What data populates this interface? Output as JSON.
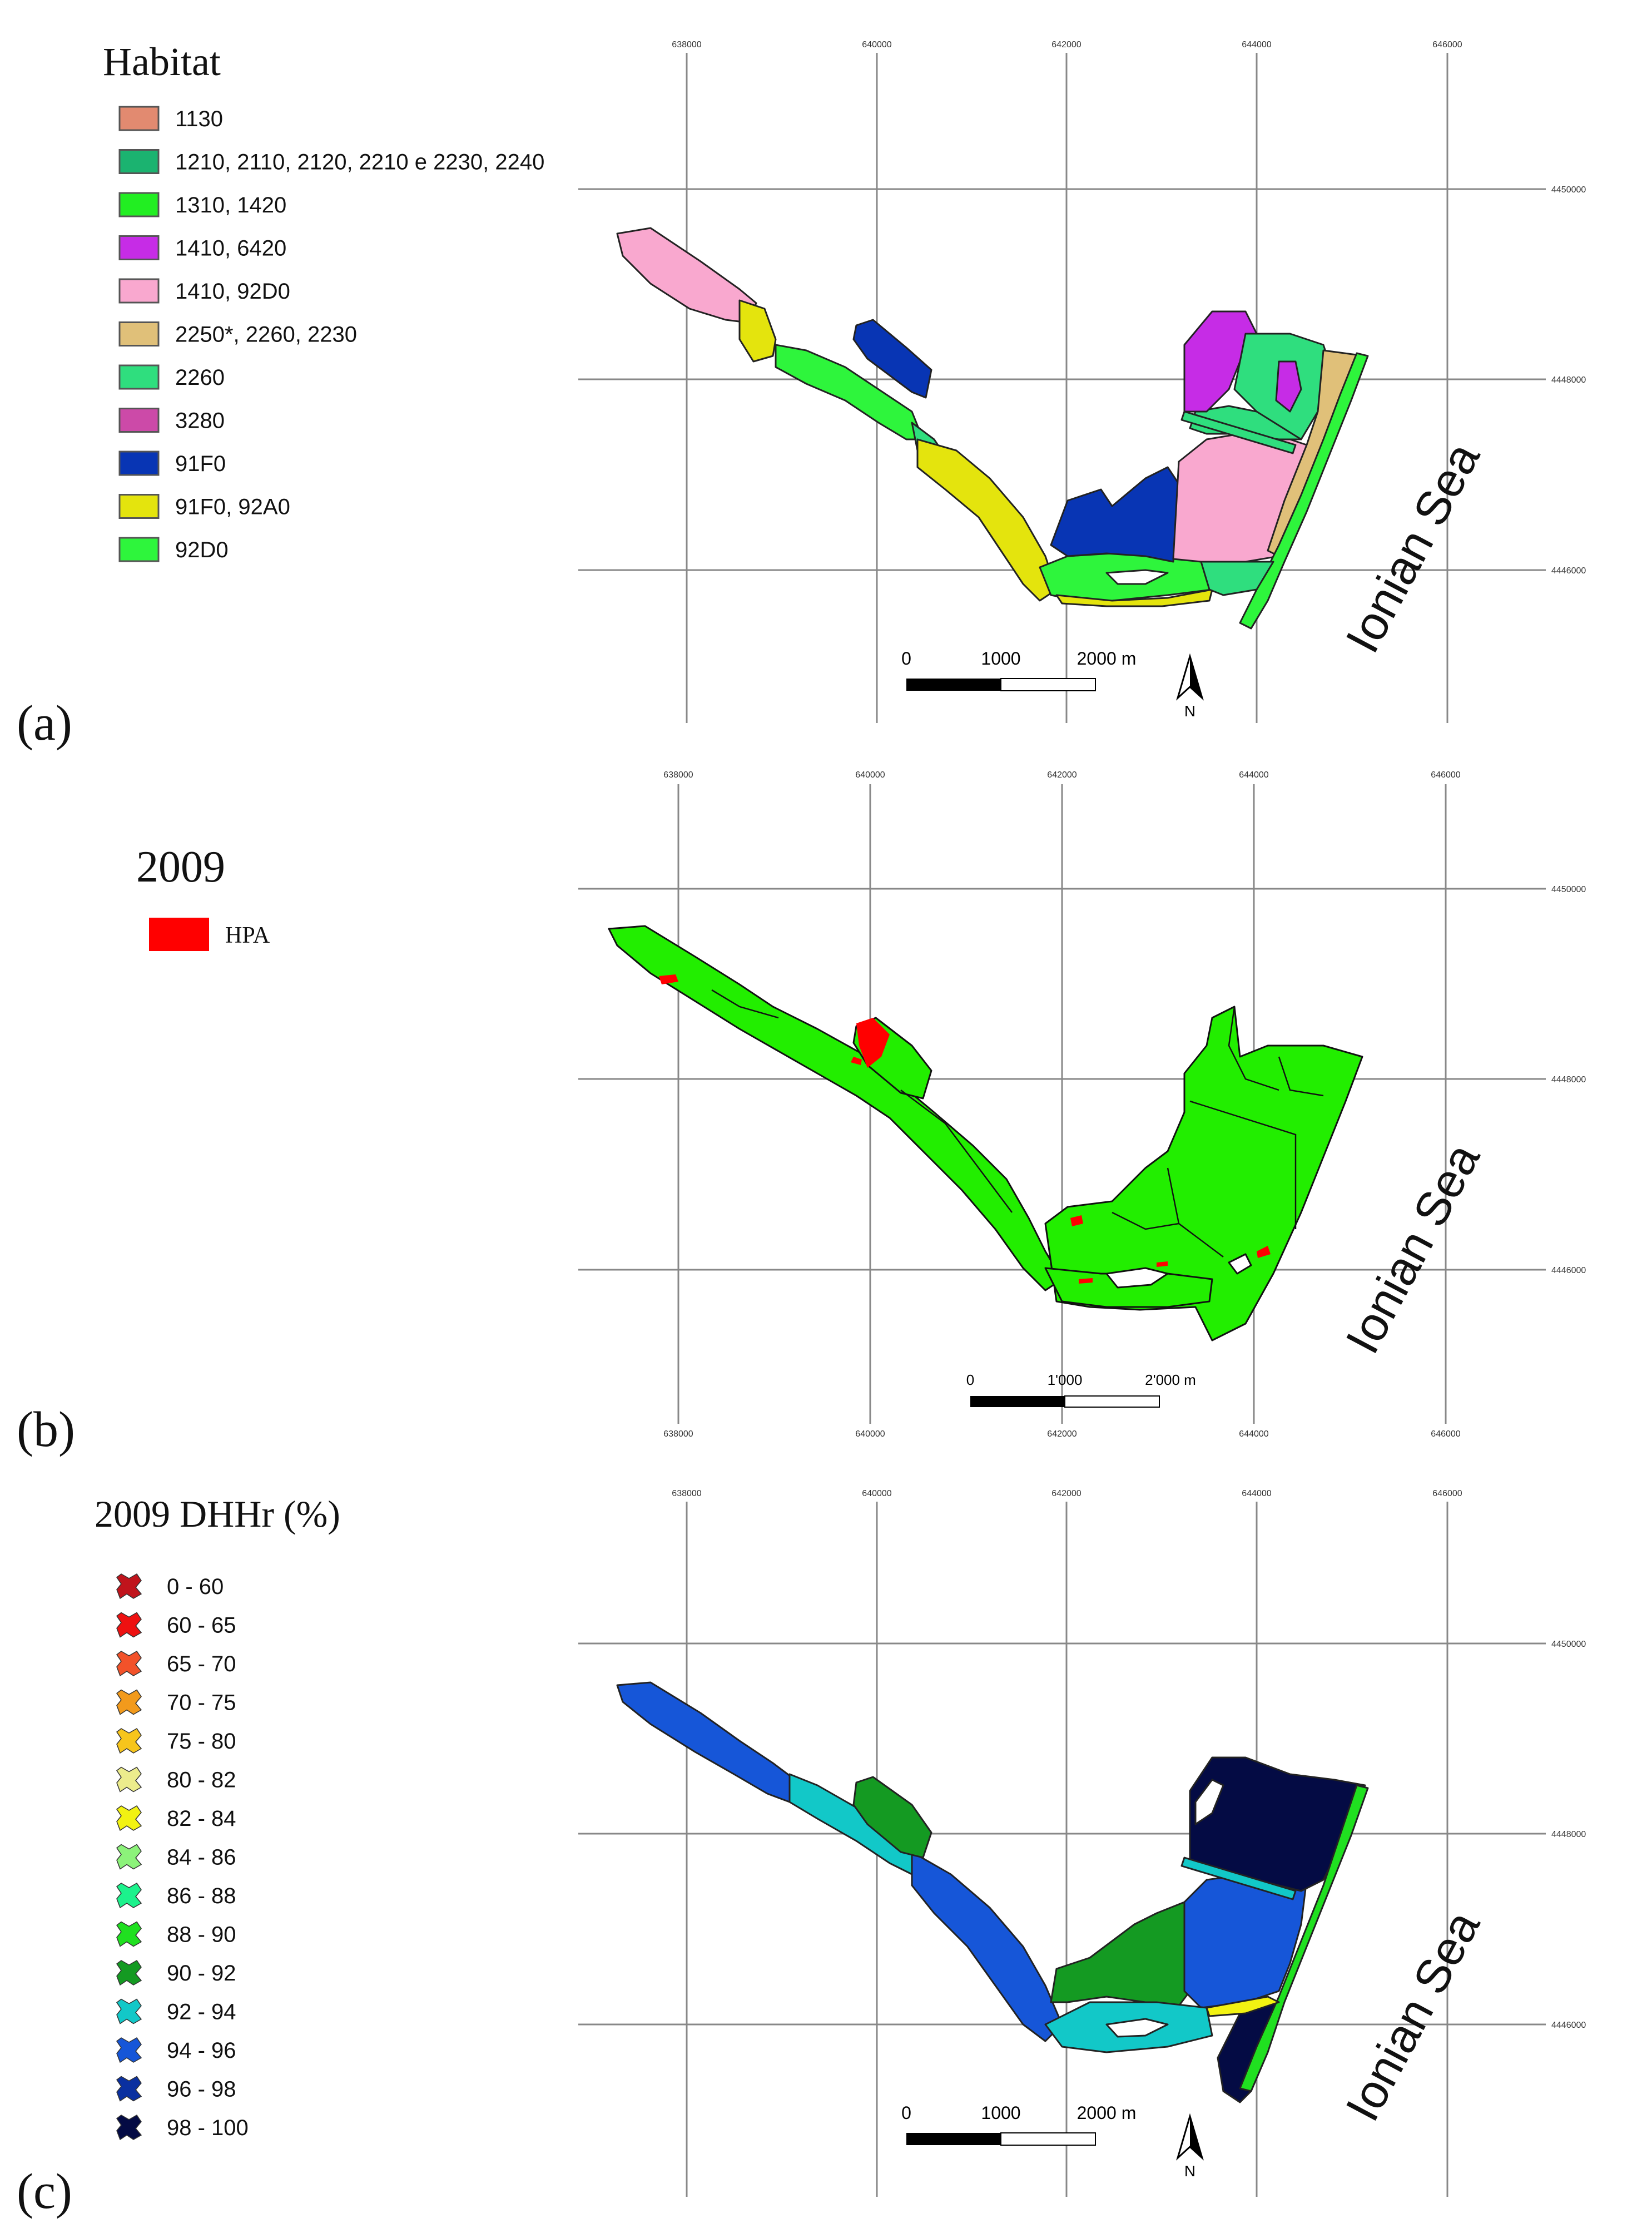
{
  "panels": {
    "a": {
      "label": "(a)",
      "legend_title": "Habitat",
      "legend": [
        {
          "label": "1130",
          "color": "#e28a70"
        },
        {
          "label": "1210, 2110, 2120, 2210 e 2230, 2240",
          "color": "#1bb370"
        },
        {
          "label": "1310, 1420",
          "color": "#22ee22"
        },
        {
          "label": "1410, 6420",
          "color": "#c62ce6"
        },
        {
          "label": "1410, 92D0",
          "color": "#f9a8cf"
        },
        {
          "label": "2250*, 2260, 2230",
          "color": "#e0c079"
        },
        {
          "label": "2260",
          "color": "#2fde7e"
        },
        {
          "label": "3280",
          "color": "#cc4aa8"
        },
        {
          "label": "91F0",
          "color": "#0835b4"
        },
        {
          "label": "91F0, 92A0",
          "color": "#e4e40d"
        },
        {
          "label": "92D0",
          "color": "#2ef53c"
        }
      ],
      "scale": {
        "labels": [
          "0",
          "1000",
          "2000 m"
        ]
      },
      "north_label": "N",
      "sea_label": "Ionian Sea",
      "x_ticks": [
        "638000",
        "640000",
        "642000",
        "644000",
        "646000"
      ],
      "y_ticks": [
        "4450000",
        "4448000",
        "4446000"
      ]
    },
    "b": {
      "label": "(b)",
      "legend_title": "2009",
      "legend": [
        {
          "label": "HPA",
          "color": "#ff0000"
        }
      ],
      "scale": {
        "labels": [
          "0",
          "1'000",
          "2'000 m"
        ]
      },
      "sea_label": "Ionian Sea",
      "fill_color": "#22ee00",
      "x_ticks_top": [
        "638000",
        "640000",
        "642000",
        "644000",
        "646000"
      ],
      "x_ticks_bottom": [
        "638000",
        "640000",
        "642000",
        "644000",
        "646000"
      ],
      "y_ticks": [
        "4450000",
        "4448000",
        "4446000"
      ]
    },
    "c": {
      "label": "(c)",
      "legend_title": "2009 DHHr (%)",
      "legend": [
        {
          "label": "0 - 60",
          "color": "#c0141c"
        },
        {
          "label": "60 - 65",
          "color": "#ee1111"
        },
        {
          "label": "65 - 70",
          "color": "#f2522a"
        },
        {
          "label": "70 - 75",
          "color": "#f29a1c"
        },
        {
          "label": "75 - 80",
          "color": "#f7c51c"
        },
        {
          "label": "80 - 82",
          "color": "#ecec8c"
        },
        {
          "label": "82 - 84",
          "color": "#f2f212"
        },
        {
          "label": "84 - 86",
          "color": "#8cf27a"
        },
        {
          "label": "86 - 88",
          "color": "#1cf28c"
        },
        {
          "label": "88 - 90",
          "color": "#20e020"
        },
        {
          "label": "90 - 92",
          "color": "#149a22"
        },
        {
          "label": "92 - 94",
          "color": "#12c8c8"
        },
        {
          "label": "94 - 96",
          "color": "#1656d8"
        },
        {
          "label": "96 - 98",
          "color": "#0a30a0"
        },
        {
          "label": "98 - 100",
          "color": "#040b44"
        }
      ],
      "scale": {
        "labels": [
          "0",
          "1000",
          "2000 m"
        ]
      },
      "north_label": "N",
      "sea_label": "Ionian Sea",
      "x_ticks": [
        "638000",
        "640000",
        "642000",
        "644000",
        "646000"
      ],
      "y_ticks": [
        "4450000",
        "4448000",
        "4446000"
      ]
    }
  }
}
